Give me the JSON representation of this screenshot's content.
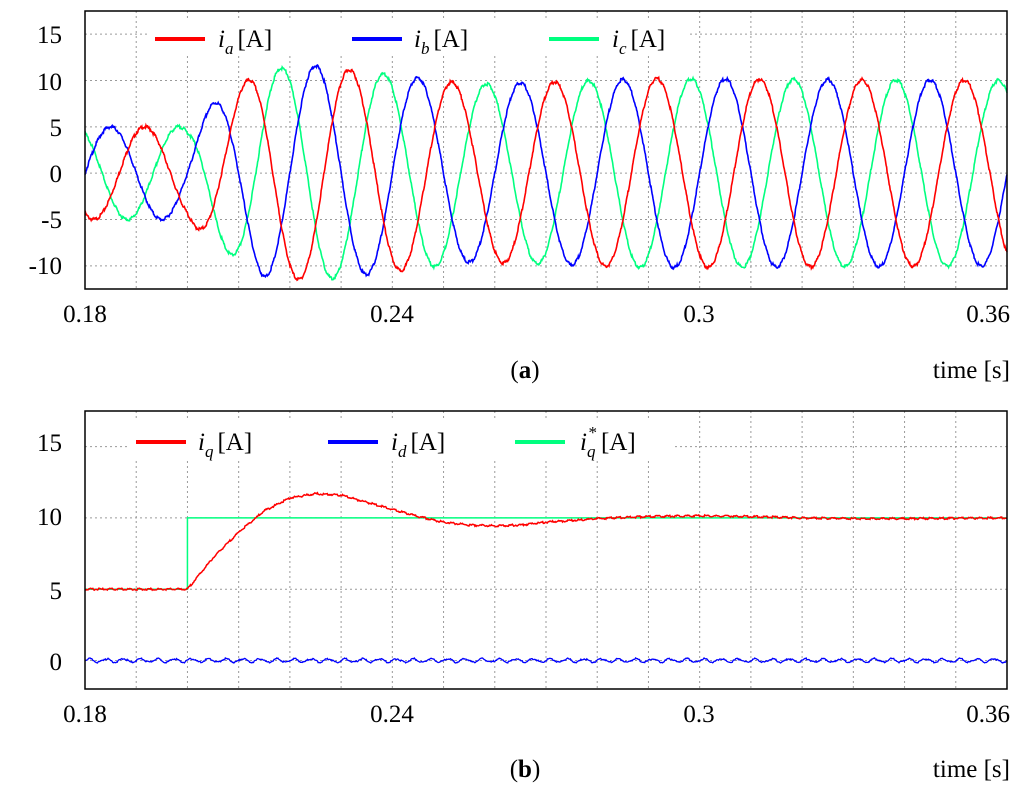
{
  "figure": {
    "panels": [
      {
        "label_open": "(",
        "label_letter": "a",
        "label_close": ")",
        "time_label": "time [s]",
        "legend": [
          {
            "sym": "i",
            "sub": "a",
            "sup": "",
            "unit": "[A]",
            "color": "#ff0000"
          },
          {
            "sym": "i",
            "sub": "b",
            "sup": "",
            "unit": "[A]",
            "color": "#0000ff"
          },
          {
            "sym": "i",
            "sub": "c",
            "sup": "",
            "unit": "[A]",
            "color": "#00ff7f"
          }
        ],
        "xticks": [
          "0.18",
          "0.24",
          "0.3",
          "0.36"
        ],
        "yticks": [
          "15",
          "10",
          "5",
          "0",
          "-5",
          "-10"
        ]
      },
      {
        "label_open": "(",
        "label_letter": "b",
        "label_close": ")",
        "time_label": "time [s]",
        "legend": [
          {
            "sym": "i",
            "sub": "q",
            "sup": "",
            "unit": "[A]",
            "color": "#ff0000"
          },
          {
            "sym": "i",
            "sub": "d",
            "sup": "",
            "unit": "[A]",
            "color": "#0000ff"
          },
          {
            "sym": "i",
            "sub": "q",
            "sup": "*",
            "unit": "[A]",
            "color": "#00ff7f"
          }
        ],
        "xticks": [
          "0.18",
          "0.24",
          "0.3",
          "0.36"
        ],
        "yticks": [
          "15",
          "10",
          "5",
          "0"
        ]
      }
    ]
  },
  "chart_data": [
    {
      "type": "line",
      "panel": "a",
      "xlabel": "time [s]",
      "ylabel": "",
      "xlim": [
        0.18,
        0.36
      ],
      "ylim": [
        -12.5,
        17.5
      ],
      "grid": true,
      "legend_position": "top",
      "xtick_values": [
        0.18,
        0.24,
        0.3,
        0.36
      ],
      "ytick_values": [
        15,
        10,
        5,
        0,
        -5,
        -10
      ],
      "series": [
        {
          "name": "ia [A]",
          "color": "#ff0000",
          "description": "three-phase sinusoid, 50 Hz; amplitude about 5 A until 0.20 s, peak about 11.5 A near 0.22 s, settling to about 10 A",
          "frequency_hz": 50,
          "phase_deg": -120,
          "amplitude_points": [
            [
              0.18,
              5
            ],
            [
              0.2,
              5
            ],
            [
              0.205,
              7.5
            ],
            [
              0.215,
              11.2
            ],
            [
              0.225,
              11.6
            ],
            [
              0.24,
              10.6
            ],
            [
              0.255,
              9.6
            ],
            [
              0.27,
              9.8
            ],
            [
              0.29,
              10.2
            ],
            [
              0.36,
              10
            ]
          ]
        },
        {
          "name": "ib [A]",
          "color": "#0000ff",
          "description": "three-phase sinusoid, 50 Hz; amplitude about 5 A until 0.20 s, peak about 11.5 A near 0.22 s, settling to about 10 A",
          "frequency_hz": 50,
          "phase_deg": 0,
          "amplitude_points": [
            [
              0.18,
              5
            ],
            [
              0.2,
              5
            ],
            [
              0.205,
              7.5
            ],
            [
              0.215,
              11.2
            ],
            [
              0.225,
              11.6
            ],
            [
              0.24,
              10.6
            ],
            [
              0.255,
              9.6
            ],
            [
              0.27,
              9.8
            ],
            [
              0.29,
              10.2
            ],
            [
              0.36,
              10
            ]
          ]
        },
        {
          "name": "ic [A]",
          "color": "#00ff7f",
          "description": "three-phase sinusoid, 50 Hz; amplitude about 5 A until 0.20 s, peak about 11.5 A near 0.22 s, settling to about 10 A",
          "frequency_hz": 50,
          "phase_deg": 120,
          "amplitude_points": [
            [
              0.18,
              5
            ],
            [
              0.2,
              5
            ],
            [
              0.205,
              7.5
            ],
            [
              0.215,
              11.2
            ],
            [
              0.225,
              11.6
            ],
            [
              0.24,
              10.6
            ],
            [
              0.255,
              9.6
            ],
            [
              0.27,
              9.8
            ],
            [
              0.29,
              10.2
            ],
            [
              0.36,
              10
            ]
          ]
        }
      ]
    },
    {
      "type": "line",
      "panel": "b",
      "xlabel": "time [s]",
      "ylabel": "",
      "xlim": [
        0.18,
        0.36
      ],
      "ylim": [
        -2,
        17.5
      ],
      "grid": true,
      "legend_position": "top",
      "xtick_values": [
        0.18,
        0.24,
        0.3,
        0.36
      ],
      "ytick_values": [
        15,
        10,
        5,
        0
      ],
      "series": [
        {
          "name": "iq [A]",
          "color": "#ff0000",
          "points": [
            [
              0.18,
              5
            ],
            [
              0.2,
              5
            ],
            [
              0.205,
              7.2
            ],
            [
              0.21,
              9
            ],
            [
              0.215,
              10.5
            ],
            [
              0.22,
              11.4
            ],
            [
              0.225,
              11.7
            ],
            [
              0.23,
              11.6
            ],
            [
              0.235,
              11.1
            ],
            [
              0.24,
              10.6
            ],
            [
              0.245,
              10.1
            ],
            [
              0.25,
              9.7
            ],
            [
              0.255,
              9.5
            ],
            [
              0.26,
              9.45
            ],
            [
              0.265,
              9.5
            ],
            [
              0.27,
              9.7
            ],
            [
              0.28,
              9.95
            ],
            [
              0.29,
              10.1
            ],
            [
              0.3,
              10.15
            ],
            [
              0.31,
              10.1
            ],
            [
              0.32,
              10.0
            ],
            [
              0.33,
              9.95
            ],
            [
              0.34,
              9.95
            ],
            [
              0.36,
              10
            ]
          ]
        },
        {
          "name": "id [A]",
          "color": "#0000ff",
          "points": [
            [
              0.18,
              0
            ],
            [
              0.36,
              0
            ]
          ]
        },
        {
          "name": "iq* [A]",
          "color": "#00ff7f",
          "points": [
            [
              0.18,
              5
            ],
            [
              0.2,
              5
            ],
            [
              0.2,
              10
            ],
            [
              0.36,
              10
            ]
          ]
        }
      ]
    }
  ]
}
